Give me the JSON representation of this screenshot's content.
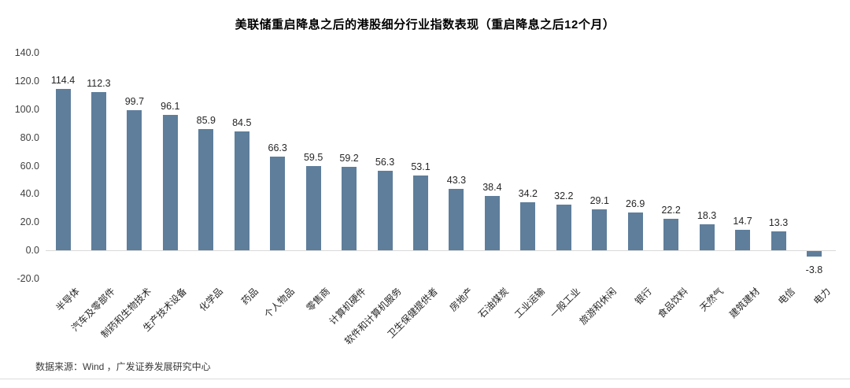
{
  "title": "美联储重启降息之后的港股细分行业指数表现（重启降息之后12个月）",
  "source_note": "数据来源：Wind ，广发证券发展研究中心",
  "colors": {
    "bar": "#5E7E9B",
    "baseline": "#D9D9D9",
    "axis_text": "#404040",
    "value_text": "#262626",
    "category_text": "#262626",
    "title_text": "#000000",
    "footer_text": "#3A3A3A"
  },
  "chart_data": {
    "type": "bar",
    "title": "美联储重启降息之后的港股细分行业指数表现（重启降息之后12个月）",
    "categories": [
      "半导体",
      "汽车及零部件",
      "制药和生物技术",
      "生产技术设备",
      "化学品",
      "药品",
      "个人物品",
      "零售商",
      "计算机硬件",
      "软件和计算机服务",
      "卫生保健提供者",
      "房地产",
      "石油煤炭",
      "工业运输",
      "一般工业",
      "旅游和休闲",
      "银行",
      "食品饮料",
      "天然气",
      "建筑建材",
      "电信",
      "电力"
    ],
    "values": [
      114.4,
      112.3,
      99.7,
      96.1,
      85.9,
      84.5,
      66.3,
      59.5,
      59.2,
      56.3,
      53.1,
      43.3,
      38.4,
      34.2,
      32.2,
      29.1,
      26.9,
      22.2,
      18.3,
      14.7,
      13.3,
      -3.8
    ],
    "xlabel": "",
    "ylabel": "",
    "ylim": [
      -20,
      140
    ],
    "yticks": [
      140,
      120,
      100,
      80,
      60,
      40,
      20,
      0,
      -20
    ],
    "grid": false,
    "legend": "none",
    "value_labels_shown": true,
    "category_label_rotation_deg": 45
  }
}
